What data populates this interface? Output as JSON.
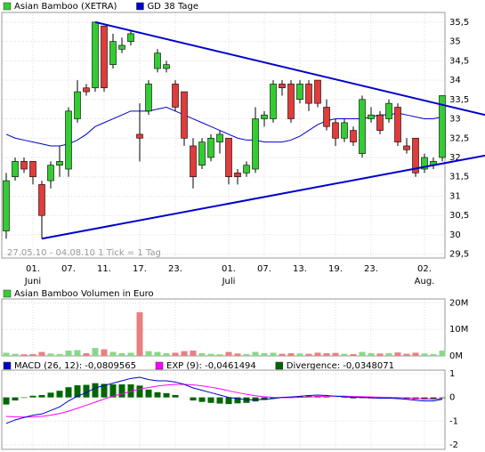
{
  "chart_data": [
    {
      "type": "candlestick",
      "legend": [
        {
          "name": "Asian Bamboo (XETRA)",
          "color": "#33cc33"
        },
        {
          "name": "GD 38 Tage",
          "color": "#0000cc"
        }
      ],
      "note": "27.05.10 - 04.08.10   1 Tick = 1 Tag",
      "up_color": "#33cc33",
      "down_color": "#e03c3c",
      "open": [
        30.1,
        31.5,
        31.9,
        31.9,
        31.3,
        31.4,
        31.8,
        31.7,
        33.0,
        33.8,
        33.8,
        35.4,
        34.4,
        34.8,
        35.0,
        32.6,
        33.2,
        34.3,
        34.3,
        33.9,
        33.7,
        32.3,
        31.8,
        32.0,
        32.4,
        32.5,
        31.6,
        31.6,
        31.7,
        33.0,
        33.0,
        33.9,
        33.9,
        33.5,
        33.9,
        34.0,
        33.3,
        32.9,
        32.5,
        32.7,
        32.1,
        33.0,
        33.1,
        33.0,
        33.3,
        32.3,
        32.5,
        31.7,
        31.8,
        32.0
      ],
      "high": [
        31.6,
        32.0,
        32.0,
        31.9,
        31.4,
        31.9,
        32.3,
        33.3,
        34.0,
        33.9,
        35.5,
        35.4,
        35.2,
        35.1,
        35.3,
        33.4,
        34.0,
        34.8,
        34.5,
        34.0,
        33.7,
        32.5,
        32.5,
        32.6,
        32.7,
        32.5,
        31.7,
        31.9,
        33.3,
        33.2,
        34.0,
        34.0,
        34.0,
        34.0,
        34.0,
        34.0,
        33.5,
        33.0,
        33.0,
        32.8,
        33.6,
        33.3,
        33.2,
        33.5,
        33.4,
        32.5,
        32.5,
        32.1,
        32.0,
        33.6
      ],
      "low": [
        29.9,
        31.4,
        31.6,
        31.3,
        29.9,
        31.2,
        31.5,
        31.5,
        32.9,
        33.6,
        33.7,
        33.7,
        34.3,
        34.7,
        34.9,
        31.9,
        33.1,
        34.2,
        34.2,
        33.2,
        32.3,
        31.2,
        31.7,
        31.9,
        32.1,
        31.3,
        31.3,
        31.5,
        31.6,
        32.8,
        32.9,
        33.6,
        32.9,
        33.4,
        33.2,
        33.3,
        32.7,
        32.3,
        32.4,
        32.3,
        32.0,
        32.9,
        32.6,
        32.9,
        32.3,
        32.1,
        31.5,
        31.6,
        31.7,
        31.9
      ],
      "close": [
        31.4,
        31.9,
        31.7,
        31.5,
        30.5,
        31.8,
        31.9,
        33.2,
        33.7,
        33.7,
        35.5,
        33.8,
        35.0,
        34.9,
        35.2,
        32.5,
        33.9,
        34.7,
        34.4,
        33.3,
        32.5,
        31.5,
        32.4,
        32.5,
        32.6,
        31.5,
        31.5,
        31.8,
        33.0,
        33.1,
        33.9,
        33.8,
        33.0,
        33.9,
        33.4,
        33.4,
        32.8,
        32.5,
        32.9,
        32.4,
        33.5,
        33.1,
        32.7,
        33.4,
        32.4,
        32.2,
        31.6,
        32.0,
        31.9,
        33.6
      ],
      "ma": {
        "color": "#0000cc",
        "values": [
          32.6,
          32.5,
          32.45,
          32.4,
          32.35,
          32.3,
          32.3,
          32.35,
          32.45,
          32.6,
          32.8,
          32.9,
          33.0,
          33.1,
          33.2,
          33.2,
          33.2,
          33.25,
          33.3,
          33.2,
          33.1,
          33.0,
          32.9,
          32.8,
          32.7,
          32.6,
          32.5,
          32.45,
          32.45,
          32.4,
          32.4,
          32.4,
          32.45,
          32.55,
          32.7,
          32.85,
          32.95,
          33.0,
          33.0,
          33.0,
          33.0,
          33.05,
          33.1,
          33.1,
          33.15,
          33.1,
          33.05,
          33.0,
          33.0,
          33.05
        ]
      },
      "lines": [
        {
          "color": "#0000cc",
          "x": [
            10,
            53.8
          ],
          "y": [
            35.5,
            33.1
          ]
        },
        {
          "color": "#0000cc",
          "x": [
            4,
            53.8
          ],
          "y": [
            29.9,
            32.05
          ]
        }
      ],
      "ylim": [
        29.4,
        35.75
      ],
      "yticks": [
        {
          "value": 29.5,
          "label": "29,5"
        },
        30,
        {
          "value": 30.5,
          "label": "30,5"
        },
        31,
        {
          "value": 31.5,
          "label": "31,5"
        },
        32,
        {
          "value": 32.5,
          "label": "32,5"
        },
        33,
        {
          "value": 33.5,
          "label": "33,5"
        },
        34,
        {
          "value": 34.5,
          "label": "34,5"
        },
        35,
        {
          "value": 35.5,
          "label": "35,5"
        }
      ],
      "xticks": [
        {
          "value": 3,
          "label": "01.",
          "sub": "Juni"
        },
        {
          "value": 7,
          "label": "07."
        },
        {
          "value": 11,
          "label": "11."
        },
        {
          "value": 15,
          "label": "17."
        },
        {
          "value": 19,
          "label": "23."
        },
        {
          "value": 25,
          "label": "01.",
          "sub": "Juli"
        },
        {
          "value": 29,
          "label": "07."
        },
        {
          "value": 33,
          "label": "13."
        },
        {
          "value": 37,
          "label": "19."
        },
        {
          "value": 41,
          "label": "23."
        },
        {
          "value": 47,
          "label": "02.",
          "sub": "Aug."
        }
      ],
      "grid": true
    },
    {
      "type": "volume",
      "legend": [
        {
          "name": "Asian Bamboo Volumen in Euro",
          "color": "#33cc33"
        }
      ],
      "up_color": "#88d888",
      "down_color": "#e88080",
      "values": [
        1200000,
        800000,
        600000,
        700000,
        1500000,
        900000,
        700000,
        2000000,
        2200000,
        1000000,
        3000000,
        2500000,
        1500000,
        1000000,
        1200000,
        16500000,
        1800000,
        1500000,
        1000000,
        1200000,
        1800000,
        2000000,
        1000000,
        800000,
        600000,
        1500000,
        900000,
        700000,
        1500000,
        1000000,
        1200000,
        800000,
        1000000,
        900000,
        800000,
        1200000,
        1000000,
        1100000,
        800000,
        700000,
        1500000,
        1000000,
        900000,
        1000000,
        1300000,
        800000,
        1200000,
        900000,
        700000,
        2000000
      ],
      "ylim": [
        0,
        21500000
      ],
      "yticks": [
        {
          "value": 0,
          "label": "0M"
        },
        {
          "value": 10000000,
          "label": "10M"
        },
        {
          "value": 20000000,
          "label": "20M"
        }
      ],
      "grid": true
    },
    {
      "type": "macd",
      "legend": [
        {
          "name": "MACD (26, 12): -0,0809565",
          "color": "#0000cc"
        },
        {
          "name": "EXP (9): -0,0461494",
          "color": "#ff00ff"
        },
        {
          "name": "Divergence: -0,0348071",
          "color": "#006600"
        }
      ],
      "macd": [
        -1.1,
        -0.95,
        -0.85,
        -0.75,
        -0.7,
        -0.55,
        -0.4,
        -0.15,
        0.05,
        0.2,
        0.4,
        0.5,
        0.6,
        0.7,
        0.8,
        0.85,
        0.75,
        0.7,
        0.7,
        0.65,
        0.55,
        0.4,
        0.3,
        0.2,
        0.1,
        0.0,
        -0.05,
        -0.1,
        -0.1,
        -0.08,
        -0.05,
        0.0,
        0.02,
        0.05,
        0.08,
        0.1,
        0.08,
        0.05,
        0.03,
        0.0,
        0.0,
        -0.02,
        -0.03,
        -0.03,
        -0.05,
        -0.08,
        -0.12,
        -0.15,
        -0.15,
        -0.08
      ],
      "exp": [
        -0.8,
        -0.82,
        -0.83,
        -0.82,
        -0.8,
        -0.75,
        -0.68,
        -0.58,
        -0.46,
        -0.33,
        -0.2,
        -0.07,
        0.05,
        0.15,
        0.25,
        0.35,
        0.42,
        0.48,
        0.52,
        0.55,
        0.55,
        0.53,
        0.49,
        0.43,
        0.36,
        0.28,
        0.2,
        0.13,
        0.07,
        0.03,
        0.0,
        -0.01,
        -0.01,
        0.0,
        0.02,
        0.04,
        0.05,
        0.05,
        0.05,
        0.04,
        0.03,
        0.02,
        0.01,
        0.0,
        -0.01,
        -0.02,
        -0.04,
        -0.06,
        -0.08,
        -0.05
      ],
      "divergence": [
        -0.3,
        -0.13,
        -0.02,
        0.07,
        0.1,
        0.2,
        0.28,
        0.43,
        0.51,
        0.53,
        0.6,
        0.57,
        0.55,
        0.55,
        0.55,
        0.5,
        0.33,
        0.22,
        0.18,
        0.1,
        0.0,
        -0.13,
        -0.19,
        -0.23,
        -0.26,
        -0.28,
        -0.25,
        -0.23,
        -0.17,
        -0.11,
        -0.05,
        0.01,
        0.03,
        0.05,
        0.06,
        0.06,
        0.03,
        0.0,
        -0.02,
        -0.04,
        -0.03,
        -0.04,
        -0.04,
        -0.03,
        -0.04,
        -0.06,
        -0.08,
        -0.09,
        -0.07,
        -0.03
      ],
      "ylim": [
        -2.19,
        1.15
      ],
      "yticks": [
        1,
        0,
        -1,
        -2
      ],
      "grid": true
    }
  ]
}
